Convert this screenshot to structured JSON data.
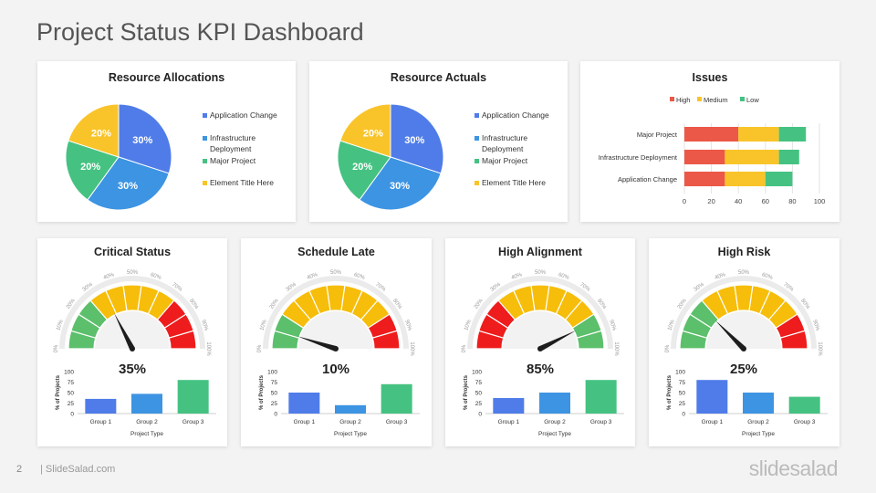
{
  "page": {
    "title": "Project Status KPI Dashboard",
    "page_number": "2",
    "source": "| SlideSalad.com",
    "brand": "slidesalad"
  },
  "colors": {
    "blue": "#4f7ce8",
    "sky": "#3d94e2",
    "green": "#45c281",
    "yellow": "#f9c42a",
    "red": "#eb5847",
    "gauge_red": "#ee1c1c",
    "gauge_yellow": "#f6bd0a",
    "gauge_green": "#5cbf6b"
  },
  "chart_data": [
    {
      "type": "pie",
      "title": "Resource Allocations",
      "labels": [
        "Application Change",
        "Infrastructure Deployment",
        "Major Project",
        "Element Title Here"
      ],
      "values": [
        30,
        30,
        20,
        20
      ],
      "value_labels": [
        "30%",
        "30%",
        "20%",
        "20%"
      ],
      "legend": "right"
    },
    {
      "type": "pie",
      "title": "Resource Actuals",
      "labels": [
        "Application Change",
        "Infrastructure Deployment",
        "Major Project",
        "Element Title Here"
      ],
      "values": [
        30,
        30,
        20,
        20
      ],
      "value_labels": [
        "30%",
        "30%",
        "20%",
        "20%"
      ],
      "legend": "right"
    },
    {
      "type": "bar",
      "orientation": "horizontal",
      "stacked": true,
      "title": "Issues",
      "categories": [
        "Major Project",
        "Infrastructure Deployment",
        "Application Change"
      ],
      "series": [
        {
          "name": "High",
          "values": [
            40,
            30,
            30
          ]
        },
        {
          "name": "Medium",
          "values": [
            30,
            40,
            30
          ]
        },
        {
          "name": "Low",
          "values": [
            20,
            15,
            20
          ]
        }
      ],
      "xlim": [
        0,
        100
      ],
      "xticks": [
        "0",
        "20",
        "40",
        "60",
        "80",
        "100"
      ],
      "grid": true,
      "legend": "top"
    }
  ],
  "kpis": [
    {
      "title": "Critical Status",
      "value": 35,
      "value_label": "35%",
      "bands": [
        "green",
        "green",
        "green",
        "yellow",
        "yellow",
        "yellow",
        "yellow",
        "yellow",
        "red",
        "red",
        "red"
      ],
      "bar_chart": {
        "type": "bar",
        "categories": [
          "Group 1",
          "Group 2",
          "Group 3"
        ],
        "values": [
          35,
          47,
          80
        ],
        "xlabel": "Project Type",
        "ylabel": "% of Projects",
        "ylim": [
          0,
          100
        ],
        "yticks": [
          "0",
          "25",
          "50",
          "75",
          "100"
        ]
      }
    },
    {
      "title": "Schedule Late",
      "value": 10,
      "value_label": "10%",
      "bands": [
        "green",
        "green",
        "yellow",
        "yellow",
        "yellow",
        "yellow",
        "yellow",
        "yellow",
        "yellow",
        "red",
        "red"
      ],
      "bar_chart": {
        "type": "bar",
        "categories": [
          "Group 1",
          "Group 2",
          "Group 3"
        ],
        "values": [
          50,
          20,
          70
        ],
        "xlabel": "Project Type",
        "ylabel": "% of Projects",
        "ylim": [
          0,
          100
        ],
        "yticks": [
          "0",
          "25",
          "50",
          "75",
          "100"
        ]
      }
    },
    {
      "title": "High Alignment",
      "value": 85,
      "value_label": "85%",
      "bands": [
        "red",
        "red",
        "red",
        "yellow",
        "yellow",
        "yellow",
        "yellow",
        "yellow",
        "yellow",
        "green",
        "green"
      ],
      "bar_chart": {
        "type": "bar",
        "categories": [
          "Group 1",
          "Group 2",
          "Group 3"
        ],
        "values": [
          37,
          50,
          80
        ],
        "xlabel": "Project Type",
        "ylabel": "% of Projects",
        "ylim": [
          0,
          100
        ],
        "yticks": [
          "0",
          "25",
          "50",
          "75",
          "100"
        ]
      }
    },
    {
      "title": "High Risk",
      "value": 25,
      "value_label": "25%",
      "bands": [
        "green",
        "green",
        "green",
        "yellow",
        "yellow",
        "yellow",
        "yellow",
        "yellow",
        "yellow",
        "red",
        "red"
      ],
      "bar_chart": {
        "type": "bar",
        "categories": [
          "Group 1",
          "Group 2",
          "Group 3"
        ],
        "values": [
          80,
          50,
          40
        ],
        "xlabel": "Project Type",
        "ylabel": "% of Projects",
        "ylim": [
          0,
          100
        ],
        "yticks": [
          "0",
          "25",
          "50",
          "75",
          "100"
        ]
      }
    }
  ],
  "gauge_ticks": [
    "0%",
    "10%",
    "20%",
    "30%",
    "40%",
    "50%",
    "60%",
    "70%",
    "80%",
    "90%",
    "100%"
  ]
}
